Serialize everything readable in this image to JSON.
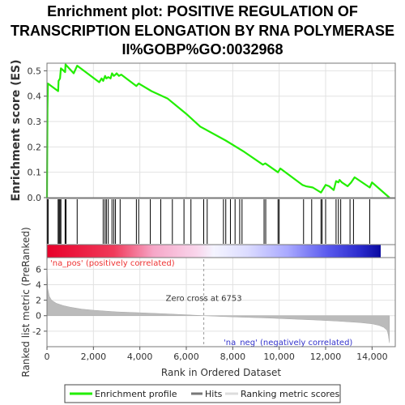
{
  "title_lines": [
    "Enrichment plot: POSITIVE REGULATION OF",
    "TRANSCRIPTION ELONGATION BY RNA POLYMERASE",
    "II%GOBP%GO:0032968"
  ],
  "colors": {
    "es_line": "#22ee00",
    "hits": "#000000",
    "metric_fill": "#bbbbbb",
    "pos_label": "#ee3333",
    "neg_label": "#3333cc",
    "zero_cross_line": "#999999"
  },
  "chart_data": [
    {
      "type": "line",
      "panel": "enrichment",
      "ylabel": "Enrichment score (ES)",
      "xlim": [
        0,
        15000
      ],
      "ylim": [
        0,
        0.53
      ],
      "yticks": [
        0.0,
        0.1,
        0.2,
        0.3,
        0.4,
        0.5
      ],
      "ytick_labels": [
        "0.0",
        "0.1",
        "0.2",
        "0.3",
        "0.4",
        "0.5"
      ],
      "grid": true,
      "series": [
        {
          "name": "Enrichment profile",
          "x": [
            0,
            20,
            40,
            480,
            500,
            560,
            600,
            780,
            800,
            1150,
            1300,
            2250,
            2350,
            2420,
            2500,
            2560,
            2640,
            2740,
            2800,
            2880,
            2950,
            3000,
            3100,
            3200,
            3850,
            3950,
            4500,
            5200,
            6000,
            6600,
            7700,
            8500,
            9300,
            9400,
            9950,
            10050,
            11000,
            11150,
            11450,
            11800,
            12000,
            12150,
            12350,
            12450,
            12550,
            12600,
            12700,
            12950,
            13100,
            13250,
            13900,
            14000,
            14750
          ],
          "y": [
            0.0,
            0.35,
            0.45,
            0.42,
            0.46,
            0.47,
            0.51,
            0.495,
            0.525,
            0.49,
            0.52,
            0.455,
            0.47,
            0.46,
            0.48,
            0.47,
            0.475,
            0.47,
            0.49,
            0.48,
            0.485,
            0.49,
            0.48,
            0.485,
            0.44,
            0.45,
            0.42,
            0.39,
            0.33,
            0.28,
            0.225,
            0.18,
            0.13,
            0.135,
            0.1,
            0.115,
            0.05,
            0.045,
            0.04,
            0.02,
            0.05,
            0.045,
            0.03,
            0.065,
            0.06,
            0.07,
            0.06,
            0.045,
            0.06,
            0.08,
            0.04,
            0.06,
            0.0
          ]
        }
      ]
    },
    {
      "type": "bar",
      "panel": "hits",
      "xlim": [
        0,
        15000
      ],
      "hit_positions": [
        30,
        50,
        480,
        520,
        560,
        600,
        780,
        820,
        1300,
        2420,
        2500,
        2560,
        2640,
        2800,
        2880,
        2950,
        3150,
        3850,
        3950,
        4450,
        4900,
        5400,
        5900,
        6200,
        6750,
        6900,
        7600,
        7700,
        7900,
        8100,
        8300,
        8400,
        9350,
        9420,
        9950,
        10000,
        11050,
        11400,
        11800,
        11850,
        12000,
        12450,
        12550,
        12650,
        13050,
        13200,
        13900
      ]
    },
    {
      "type": "area",
      "panel": "ranked_list_metric",
      "xlabel": "Rank in Ordered Dataset",
      "ylabel": "Ranked list metric (PreRanked)",
      "xlim": [
        0,
        15000
      ],
      "ylim": [
        -4,
        7.5
      ],
      "xticks": [
        0,
        2000,
        4000,
        6000,
        8000,
        10000,
        12000,
        14000
      ],
      "xtick_labels": [
        "0",
        "2,000",
        "4,000",
        "6,000",
        "8,000",
        "10,000",
        "12,000",
        "14,000"
      ],
      "yticks": [
        -2,
        0,
        2,
        4,
        6
      ],
      "ytick_labels": [
        "-2",
        "0",
        "2",
        "4",
        "6"
      ],
      "x": [
        0,
        30,
        100,
        200,
        400,
        700,
        1000,
        1500,
        2000,
        3000,
        4000,
        5000,
        6000,
        6753,
        7500,
        8500,
        9500,
        10500,
        11500,
        12500,
        13500,
        14000,
        14300,
        14500,
        14650,
        14700,
        14750
      ],
      "y": [
        6.5,
        3.5,
        2.5,
        2.0,
        1.6,
        1.3,
        1.1,
        0.85,
        0.7,
        0.5,
        0.38,
        0.25,
        0.12,
        0.0,
        -0.1,
        -0.2,
        -0.3,
        -0.42,
        -0.55,
        -0.7,
        -0.9,
        -1.05,
        -1.25,
        -1.5,
        -1.9,
        -2.5,
        -3.5
      ],
      "zero_cross_label": "Zero cross at 6753",
      "zero_cross_x": 6753,
      "pos_label": "'na_pos' (positively correlated)",
      "neg_label": "'na_neg' (negatively correlated)"
    }
  ],
  "legend": {
    "entries": [
      {
        "label": "Enrichment profile",
        "swatch": "line"
      },
      {
        "label": "Hits",
        "swatch": "hit"
      },
      {
        "label": "Ranking metric scores",
        "swatch": "metric"
      }
    ]
  }
}
